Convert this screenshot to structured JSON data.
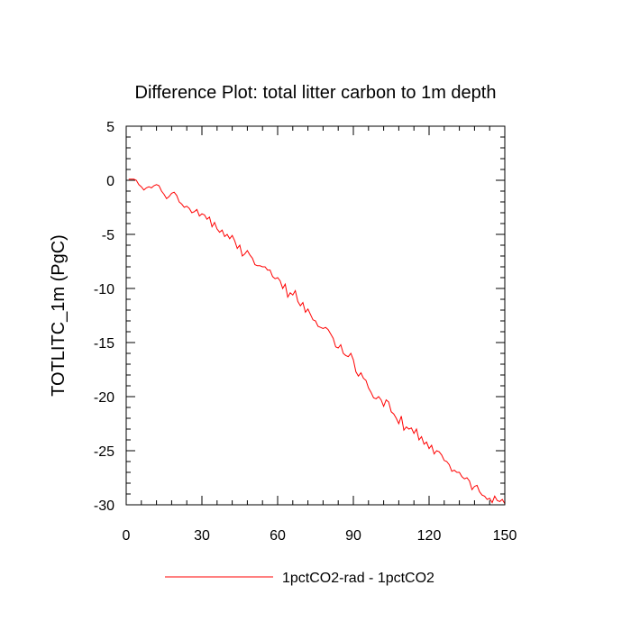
{
  "chart_data": {
    "type": "line",
    "title": "Difference Plot: total litter carbon to 1m depth",
    "xlabel": "",
    "ylabel": "TOTLITC_1m  (PgC)",
    "xlim": [
      0,
      150
    ],
    "ylim": [
      -30,
      5
    ],
    "xticks": [
      0,
      30,
      60,
      90,
      120,
      150
    ],
    "yticks": [
      5,
      0,
      -5,
      -10,
      -15,
      -20,
      -25,
      -30
    ],
    "xtick_labels": [
      "0",
      "30",
      "60",
      "90",
      "120",
      "150"
    ],
    "ytick_labels": [
      "5",
      "0",
      "-5",
      "-10",
      "-15",
      "-20",
      "-25",
      "-30"
    ],
    "grid": false,
    "legend_position": "bottom-center",
    "series": [
      {
        "name": "1pctCO2-rad - 1pctCO2",
        "color": "#ff0000",
        "x": [
          1,
          2,
          3,
          4,
          5,
          6,
          7,
          8,
          9,
          10,
          11,
          12,
          13,
          14,
          15,
          16,
          17,
          18,
          19,
          20,
          21,
          22,
          23,
          24,
          25,
          26,
          27,
          28,
          29,
          30,
          31,
          32,
          33,
          34,
          35,
          36,
          37,
          38,
          39,
          40,
          41,
          42,
          43,
          44,
          45,
          46,
          47,
          48,
          49,
          50,
          51,
          52,
          53,
          54,
          55,
          56,
          57,
          58,
          59,
          60,
          61,
          62,
          63,
          64,
          65,
          66,
          67,
          68,
          69,
          70,
          71,
          72,
          73,
          74,
          75,
          76,
          77,
          78,
          79,
          80,
          81,
          82,
          83,
          84,
          85,
          86,
          87,
          88,
          89,
          90,
          91,
          92,
          93,
          94,
          95,
          96,
          97,
          98,
          99,
          100,
          101,
          102,
          103,
          104,
          105,
          106,
          107,
          108,
          109,
          110,
          111,
          112,
          113,
          114,
          115,
          116,
          117,
          118,
          119,
          120,
          121,
          122,
          123,
          124,
          125,
          126,
          127,
          128,
          129,
          130,
          131,
          132,
          133,
          134,
          135,
          136,
          137,
          138,
          139,
          140,
          141,
          142,
          143,
          144,
          145,
          146,
          147,
          148,
          149,
          150
        ],
        "values": [
          0.1,
          0.1,
          0.1,
          0.0,
          -0.4,
          -0.6,
          -0.9,
          -0.7,
          -0.6,
          -0.7,
          -0.5,
          -0.4,
          -0.5,
          -1.0,
          -1.3,
          -1.7,
          -1.5,
          -1.2,
          -1.1,
          -1.4,
          -2.0,
          -2.2,
          -2.5,
          -2.4,
          -2.6,
          -3.0,
          -2.9,
          -2.7,
          -3.3,
          -3.1,
          -3.2,
          -3.6,
          -3.4,
          -4.3,
          -3.9,
          -4.5,
          -4.8,
          -4.6,
          -5.2,
          -5.0,
          -5.4,
          -5.1,
          -5.6,
          -6.3,
          -6.0,
          -7.0,
          -6.8,
          -6.5,
          -6.9,
          -7.2,
          -7.8,
          -7.9,
          -7.9,
          -8.0,
          -8.0,
          -8.3,
          -8.3,
          -8.9,
          -9.1,
          -9.0,
          -9.3,
          -10.0,
          -9.6,
          -10.8,
          -10.4,
          -10.6,
          -10.2,
          -11.2,
          -11.6,
          -11.3,
          -12.2,
          -11.9,
          -12.4,
          -12.9,
          -13.0,
          -13.5,
          -13.6,
          -13.7,
          -13.6,
          -13.8,
          -14.2,
          -14.6,
          -15.4,
          -15.5,
          -15.2,
          -16.0,
          -16.2,
          -16.3,
          -16.0,
          -16.6,
          -17.7,
          -18.1,
          -17.8,
          -18.3,
          -18.5,
          -19.2,
          -19.6,
          -20.1,
          -20.2,
          -20.0,
          -20.3,
          -20.9,
          -20.3,
          -20.5,
          -21.4,
          -21.6,
          -22.0,
          -22.5,
          -21.8,
          -23.1,
          -22.8,
          -23.0,
          -22.9,
          -23.4,
          -23.0,
          -24.0,
          -23.7,
          -24.4,
          -24.2,
          -24.8,
          -24.5,
          -25.3,
          -25.0,
          -25.1,
          -25.4,
          -25.9,
          -26.0,
          -26.3,
          -26.9,
          -26.8,
          -27.0,
          -27.0,
          -27.4,
          -27.6,
          -27.5,
          -27.8,
          -28.6,
          -28.3,
          -28.2,
          -28.8,
          -29.1,
          -29.2,
          -29.5,
          -29.4,
          -29.8,
          -29.2,
          -29.6,
          -29.7,
          -29.5,
          -29.9
        ]
      }
    ]
  }
}
